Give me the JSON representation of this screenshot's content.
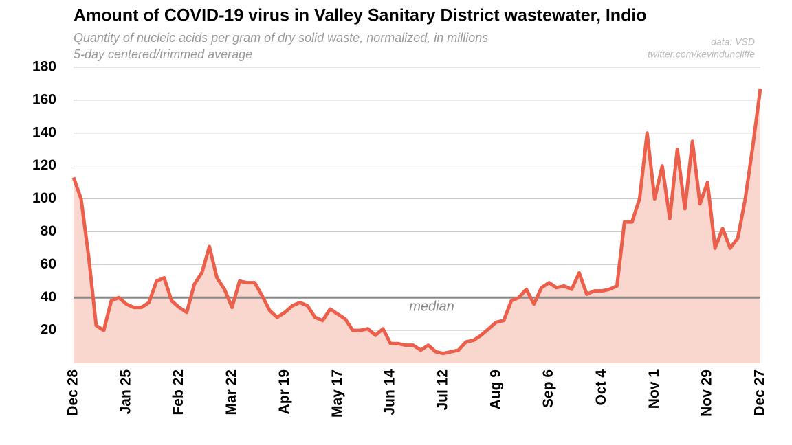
{
  "chart_data": {
    "type": "area",
    "title": "Amount of COVID-19 virus in Valley Sanitary District wastewater, Indio",
    "subtitle": [
      "Quantity of nucleic acids per gram of dry solid waste, normalized, in millions",
      "5-day centered/trimmed average"
    ],
    "source": [
      "data: VSD",
      "twitter.com/kevinduncliffe"
    ],
    "categories": [
      "Dec 28",
      null,
      null,
      null,
      null,
      null,
      null,
      "Jan 25",
      null,
      null,
      null,
      null,
      null,
      null,
      "Feb 22",
      null,
      null,
      null,
      null,
      null,
      null,
      "Mar 22",
      null,
      null,
      null,
      null,
      null,
      null,
      "Apr 19",
      null,
      null,
      null,
      null,
      null,
      null,
      "May 17",
      null,
      null,
      null,
      null,
      null,
      null,
      "Jun 14",
      null,
      null,
      null,
      null,
      null,
      null,
      "Jul 12",
      null,
      null,
      null,
      null,
      null,
      null,
      "Aug 9",
      null,
      null,
      null,
      null,
      null,
      null,
      "Sep 6",
      null,
      null,
      null,
      null,
      null,
      null,
      "Oct 4",
      null,
      null,
      null,
      null,
      null,
      null,
      "Nov 1",
      null,
      null,
      null,
      null,
      null,
      null,
      "Nov 29",
      null,
      null,
      null,
      null,
      null,
      null,
      "Dec 27"
    ],
    "series": [
      {
        "color": "#ec5f4b",
        "fill": "#f9d6ce",
        "values": [
          113,
          100,
          65,
          23,
          20,
          38,
          40,
          36,
          34,
          34,
          37,
          50,
          52,
          38,
          34,
          31,
          48,
          55,
          71,
          52,
          45,
          34,
          50,
          49,
          49,
          41,
          32,
          28,
          31,
          35,
          37,
          35,
          28,
          26,
          33,
          30,
          27,
          20,
          20,
          21,
          17,
          21,
          12,
          12,
          11,
          11,
          8,
          11,
          7,
          6,
          7,
          8,
          13,
          14,
          17,
          21,
          25,
          26,
          38,
          40,
          45,
          36,
          46,
          49,
          46,
          47,
          45,
          55,
          42,
          44,
          44,
          45,
          47,
          86,
          86,
          100,
          140,
          100,
          120,
          88,
          130,
          94,
          135,
          97,
          110,
          70,
          82,
          70,
          76,
          100,
          132,
          167
        ]
      }
    ],
    "median": {
      "label": "median",
      "value": 40,
      "color": "#888888"
    },
    "ylim": [
      0,
      180
    ],
    "yticks": [
      20,
      40,
      60,
      80,
      100,
      120,
      140,
      160,
      180
    ],
    "grid": true
  }
}
